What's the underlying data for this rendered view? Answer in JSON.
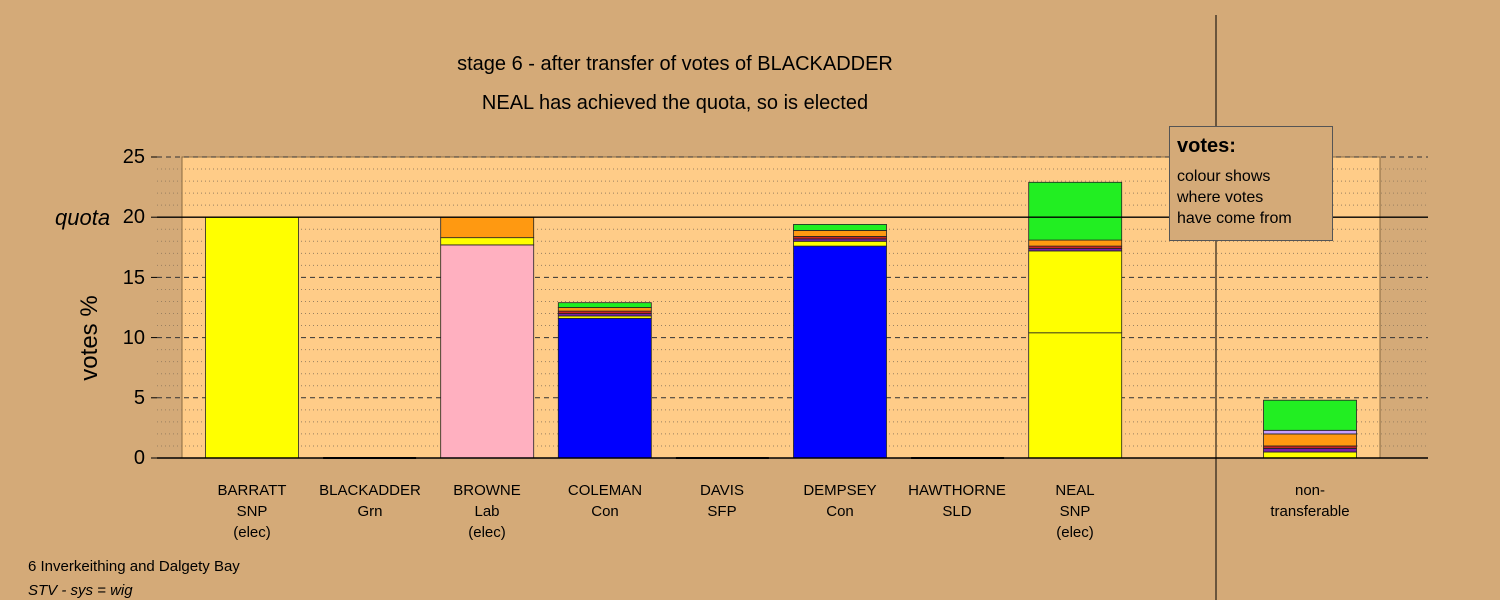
{
  "header": {
    "title": "stage 6 - after transfer of votes of BLACKADDER",
    "subtitle": "NEAL has achieved the quota, so is elected"
  },
  "legend": {
    "title": "votes:",
    "lines": [
      "colour shows",
      "where votes",
      "have come from"
    ]
  },
  "footer": {
    "ward": "6 Inverkeithing and Dalgety Bay",
    "system": "STV - sys = wig"
  },
  "axis": {
    "ylabel": "votes %",
    "quota_label": "quota",
    "ticks": [
      "0",
      "5",
      "10",
      "15",
      "20",
      "25"
    ]
  },
  "colors": {
    "background": "#d4aa78",
    "plot_area": "#ffcc88",
    "snp": "#ffff00",
    "lab": "#ffb0c0",
    "con": "#0000ff",
    "grn": "#22ee22",
    "lab_transfer": "#ff9911",
    "sfp": "#cc2222",
    "sld": "#7722aa"
  },
  "chart_data": {
    "type": "bar",
    "stacked": true,
    "ylim": [
      0,
      25
    ],
    "quota": 20,
    "ylabel": "votes %",
    "candidates": [
      {
        "name": "BARRATT",
        "party": "SNP",
        "status": "(elec)",
        "segments": [
          {
            "from": "own",
            "color": "#ffff00",
            "value": 20.0
          }
        ]
      },
      {
        "name": "BLACKADDER",
        "party": "Grn",
        "status": "",
        "segments": []
      },
      {
        "name": "BROWNE",
        "party": "Lab",
        "status": "(elec)",
        "segments": [
          {
            "from": "own",
            "color": "#ffb0c0",
            "value": 17.7
          },
          {
            "from": "SNP",
            "color": "#ffff00",
            "value": 0.6
          },
          {
            "from": "Lab transfer",
            "color": "#ff9911",
            "value": 1.7
          }
        ]
      },
      {
        "name": "COLEMAN",
        "party": "Con",
        "status": "",
        "segments": [
          {
            "from": "own",
            "color": "#0000ff",
            "value": 11.6
          },
          {
            "from": "SNP",
            "color": "#ffff00",
            "value": 0.2
          },
          {
            "from": "SLD",
            "color": "#7722aa",
            "value": 0.2
          },
          {
            "from": "SFP",
            "color": "#cc2222",
            "value": 0.2
          },
          {
            "from": "Lab transfer",
            "color": "#ff9911",
            "value": 0.3
          },
          {
            "from": "Grn",
            "color": "#22ee22",
            "value": 0.4
          }
        ]
      },
      {
        "name": "DAVIS",
        "party": "SFP",
        "status": "",
        "segments": []
      },
      {
        "name": "DEMPSEY",
        "party": "Con",
        "status": "",
        "segments": [
          {
            "from": "own",
            "color": "#0000ff",
            "value": 17.6
          },
          {
            "from": "SNP",
            "color": "#ffff00",
            "value": 0.4
          },
          {
            "from": "SLD",
            "color": "#7722aa",
            "value": 0.2
          },
          {
            "from": "SFP",
            "color": "#cc2222",
            "value": 0.2
          },
          {
            "from": "Lab transfer",
            "color": "#ff9911",
            "value": 0.5
          },
          {
            "from": "Grn",
            "color": "#22ee22",
            "value": 0.5
          }
        ]
      },
      {
        "name": "HAWTHORNE",
        "party": "SLD",
        "status": "",
        "segments": []
      },
      {
        "name": "NEAL",
        "party": "SNP",
        "status": "(elec)",
        "segments": [
          {
            "from": "own",
            "color": "#ffff00",
            "value": 10.4
          },
          {
            "from": "SNP surplus",
            "color": "#ffff00",
            "value": 6.8
          },
          {
            "from": "SLD",
            "color": "#7722aa",
            "value": 0.2
          },
          {
            "from": "SFP",
            "color": "#cc2222",
            "value": 0.2
          },
          {
            "from": "Lab transfer",
            "color": "#ff9911",
            "value": 0.5
          },
          {
            "from": "Grn",
            "color": "#22ee22",
            "value": 4.8
          }
        ]
      }
    ],
    "non_transferable": {
      "label": [
        "non-",
        "transferable"
      ],
      "segments": [
        {
          "from": "SNP",
          "color": "#ffff00",
          "value": 0.5
        },
        {
          "from": "SLD",
          "color": "#7722aa",
          "value": 0.3
        },
        {
          "from": "SFP",
          "color": "#cc2222",
          "value": 0.2
        },
        {
          "from": "Lab transfer",
          "color": "#ff9911",
          "value": 1.0
        },
        {
          "from": "other",
          "color": "#c8a0ff",
          "value": 0.3
        },
        {
          "from": "Grn",
          "color": "#22ee22",
          "value": 2.5
        }
      ]
    }
  }
}
